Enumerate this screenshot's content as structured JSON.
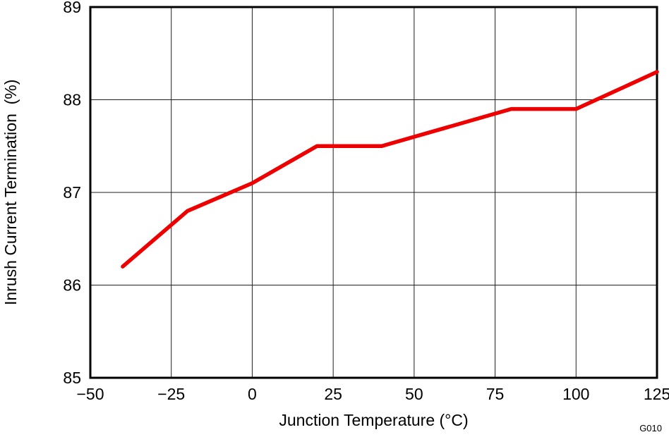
{
  "figure_label": "G010",
  "chart_data": {
    "type": "line",
    "title": "",
    "xlabel": "Junction Temperature (°C)",
    "ylabel": "Inrush Current Termination  (%)",
    "xlim": [
      -50,
      125
    ],
    "ylim": [
      85,
      89
    ],
    "x_ticks": [
      -50,
      -25,
      0,
      25,
      50,
      75,
      100,
      125
    ],
    "x_tick_labels": [
      "−50",
      "−25",
      "0",
      "25",
      "50",
      "75",
      "100",
      "125"
    ],
    "y_ticks": [
      85,
      86,
      87,
      88,
      89
    ],
    "y_tick_labels": [
      "85",
      "86",
      "87",
      "88",
      "89"
    ],
    "grid": true,
    "legend_position": "none",
    "colors": {
      "series": "#ee0000",
      "grid": "#231f20",
      "frame": "#000000"
    },
    "series": [
      {
        "name": "Inrush Current Termination",
        "color": "#ee0000",
        "x": [
          -40,
          -20,
          0,
          20,
          40,
          60,
          80,
          100,
          125
        ],
        "y": [
          86.2,
          86.8,
          87.1,
          87.5,
          87.5,
          87.7,
          87.9,
          87.9,
          88.3
        ]
      }
    ]
  }
}
